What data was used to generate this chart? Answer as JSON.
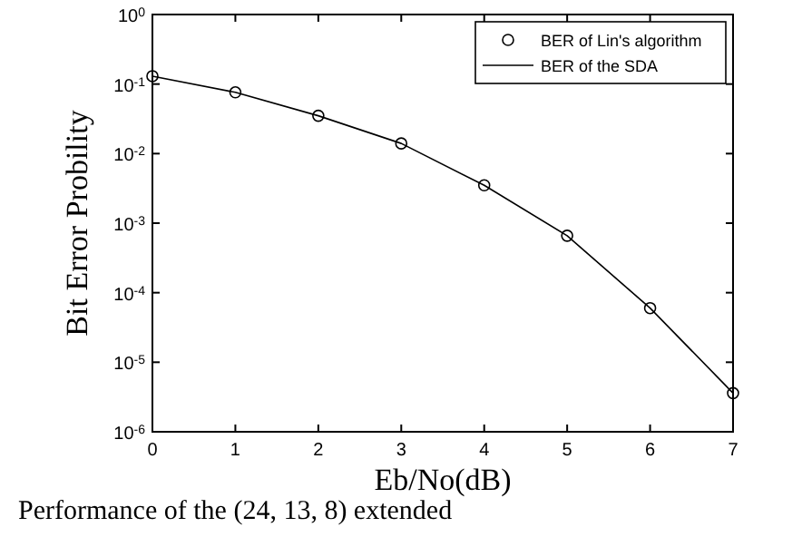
{
  "chart_data": {
    "type": "line",
    "xlabel": "Eb/No(dB)",
    "ylabel": "Bit Error Probility",
    "x": [
      0,
      1,
      2,
      3,
      4,
      5,
      6,
      7
    ],
    "series": [
      {
        "name": "BER of Lin's algorithm",
        "type": "scatter",
        "color": "#000000",
        "marker": "circle",
        "values": [
          0.13,
          0.076,
          0.035,
          0.014,
          0.0035,
          0.00066,
          6e-05,
          3.6e-06
        ]
      },
      {
        "name": "BER of the SDA",
        "color": "#000000",
        "line_style": "solid",
        "values": [
          0.13,
          0.076,
          0.035,
          0.014,
          0.0035,
          0.00066,
          6e-05,
          3.6e-06
        ]
      }
    ],
    "log": "y",
    "xlim": [
      0,
      7
    ],
    "ylim": [
      1e-06,
      1
    ],
    "xticks": [
      0,
      1,
      2,
      3,
      4,
      5,
      6,
      7
    ],
    "yticks": [
      {
        "value": 1e-06,
        "label": "10$^{-6}$"
      },
      {
        "value": 1e-05,
        "label": "10$^{-5}$"
      },
      {
        "value": 0.0001,
        "label": "10$^{-4}$"
      },
      {
        "value": 0.001,
        "label": "10$^{-3}$"
      },
      {
        "value": 0.01,
        "label": "10$^{-2}$"
      },
      {
        "value": 0.1,
        "label": "10$^{-1}$"
      },
      {
        "value": 1,
        "label": "10$^{0}$"
      }
    ],
    "legend": "top right",
    "annotations": [
      "Performance of the (24, 13, 8) extended"
    ]
  }
}
